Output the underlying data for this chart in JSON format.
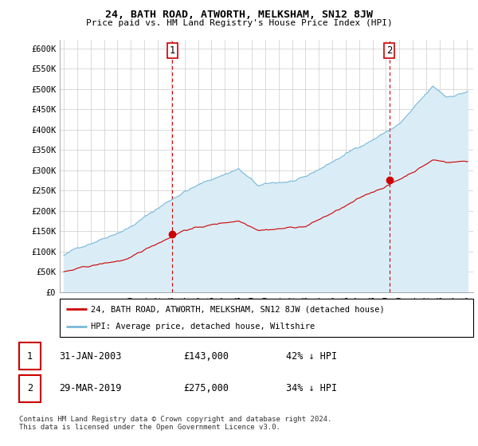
{
  "title": "24, BATH ROAD, ATWORTH, MELKSHAM, SN12 8JW",
  "subtitle": "Price paid vs. HM Land Registry's House Price Index (HPI)",
  "legend_line1": "24, BATH ROAD, ATWORTH, MELKSHAM, SN12 8JW (detached house)",
  "legend_line2": "HPI: Average price, detached house, Wiltshire",
  "footnote": "Contains HM Land Registry data © Crown copyright and database right 2024.\nThis data is licensed under the Open Government Licence v3.0.",
  "label1_date": "31-JAN-2003",
  "label1_price": "£143,000",
  "label1_hpi": "42% ↓ HPI",
  "label2_date": "29-MAR-2019",
  "label2_price": "£275,000",
  "label2_hpi": "34% ↓ HPI",
  "hpi_color": "#7ab8d9",
  "hpi_fill": "#daedf7",
  "price_color": "#cc0000",
  "ylim": [
    0,
    620000
  ],
  "yticks": [
    0,
    50000,
    100000,
    150000,
    200000,
    250000,
    300000,
    350000,
    400000,
    450000,
    500000,
    550000,
    600000
  ],
  "ytick_labels": [
    "£0",
    "£50K",
    "£100K",
    "£150K",
    "£200K",
    "£250K",
    "£300K",
    "£350K",
    "£400K",
    "£450K",
    "£500K",
    "£550K",
    "£600K"
  ],
  "sale1_x": 2003.08,
  "sale1_y": 143000,
  "sale2_x": 2019.25,
  "sale2_y": 275000,
  "vline1_x": 2003.08,
  "vline2_x": 2019.25,
  "xlim_left": 1994.7,
  "xlim_right": 2025.5
}
